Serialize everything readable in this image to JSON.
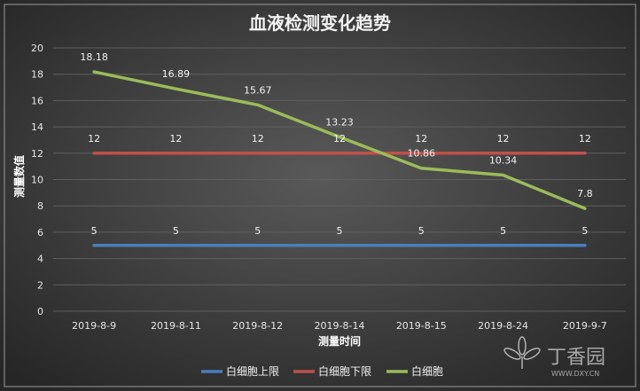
{
  "chart_data": {
    "type": "line",
    "title": "血液检测变化趋势",
    "xlabel": "测量时间",
    "ylabel": "测量数值",
    "categories": [
      "2019-8-9",
      "2019-8-11",
      "2019-8-12",
      "2019-8-14",
      "2019-8-15",
      "2019-8-24",
      "2019-9-7"
    ],
    "ylim": [
      0,
      20
    ],
    "yticks": [
      0,
      2,
      4,
      6,
      8,
      10,
      12,
      14,
      16,
      18,
      20
    ],
    "grid": true,
    "legend_position": "bottom",
    "series": [
      {
        "name": "白细胞上限",
        "color": "#4a7ebb",
        "values": [
          5,
          5,
          5,
          5,
          5,
          5,
          5
        ],
        "labels": [
          "5",
          "5",
          "5",
          "5",
          "5",
          "5",
          "5"
        ]
      },
      {
        "name": "白细胞下限",
        "color": "#c0504d",
        "values": [
          12,
          12,
          12,
          12,
          12,
          12,
          12
        ],
        "labels": [
          "12",
          "12",
          "12",
          "12",
          "12",
          "12",
          "12"
        ]
      },
      {
        "name": "白细胞",
        "color": "#9bbb59",
        "values": [
          18.18,
          16.89,
          15.67,
          13.23,
          10.86,
          10.34,
          7.8
        ],
        "labels": [
          "18.18",
          "16.89",
          "15.67",
          "13.23",
          "10.86",
          "10.34",
          "7.8"
        ]
      }
    ]
  },
  "watermark": {
    "brand": "丁香园",
    "url": "WWW.DXY.CN",
    "icon": "flower-logo-icon"
  },
  "colors": {
    "background_center": "#595959",
    "background_edge": "#262626",
    "gridline": "#5f5f5f"
  }
}
